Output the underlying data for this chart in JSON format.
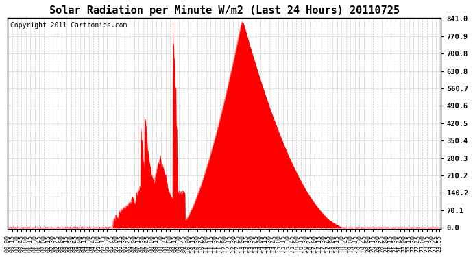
{
  "title": "Solar Radiation per Minute W/m2 (Last 24 Hours) 20110725",
  "copyright_text": "Copyright 2011 Cartronics.com",
  "yticks": [
    0.0,
    70.1,
    140.2,
    210.2,
    280.3,
    350.4,
    420.5,
    490.6,
    560.7,
    630.8,
    700.8,
    770.9,
    841.0
  ],
  "ymin": 0.0,
  "ymax": 841.0,
  "fill_color": "#ff0000",
  "line_color": "#ff0000",
  "dashed_line_color": "#ff0000",
  "bg_color": "#ffffff",
  "plot_bg_color": "#ffffff",
  "grid_color": "#bbbbbb",
  "border_color": "#000000",
  "title_fontsize": 11,
  "copyright_fontsize": 7,
  "xtick_fontsize": 6,
  "ytick_fontsize": 7.5
}
